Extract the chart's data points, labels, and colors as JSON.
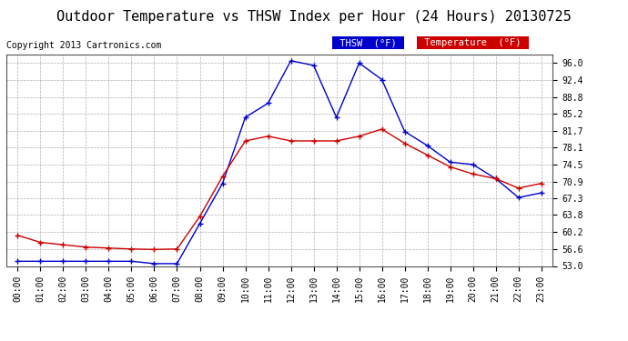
{
  "title": "Outdoor Temperature vs THSW Index per Hour (24 Hours) 20130725",
  "copyright": "Copyright 2013 Cartronics.com",
  "x_labels": [
    "00:00",
    "01:00",
    "02:00",
    "03:00",
    "04:00",
    "05:00",
    "06:00",
    "07:00",
    "08:00",
    "09:00",
    "10:00",
    "11:00",
    "12:00",
    "13:00",
    "14:00",
    "15:00",
    "16:00",
    "17:00",
    "18:00",
    "19:00",
    "20:00",
    "21:00",
    "22:00",
    "23:00"
  ],
  "thsw": [
    54.0,
    54.0,
    54.0,
    54.0,
    54.0,
    54.0,
    53.5,
    53.5,
    62.0,
    70.5,
    84.5,
    87.5,
    96.5,
    95.5,
    84.5,
    96.0,
    92.5,
    81.5,
    78.5,
    75.0,
    74.5,
    71.5,
    67.5,
    68.5
  ],
  "temperature": [
    59.5,
    58.0,
    57.5,
    57.0,
    56.8,
    56.6,
    56.5,
    56.6,
    63.5,
    72.0,
    79.5,
    80.5,
    79.5,
    79.5,
    79.5,
    80.5,
    82.0,
    79.0,
    76.5,
    74.0,
    72.5,
    71.5,
    69.5,
    70.5
  ],
  "ylim": [
    53.0,
    97.8
  ],
  "yticks": [
    53.0,
    56.6,
    60.2,
    63.8,
    67.3,
    70.9,
    74.5,
    78.1,
    81.7,
    85.2,
    88.8,
    92.4,
    96.0
  ],
  "thsw_color": "#0000cc",
  "temp_color": "#cc0000",
  "bg_color": "#ffffff",
  "grid_color": "#b0b0b0",
  "legend_thsw_bg": "#0000cc",
  "legend_temp_bg": "#cc0000",
  "title_fontsize": 11,
  "copyright_fontsize": 7,
  "axis_fontsize": 7
}
